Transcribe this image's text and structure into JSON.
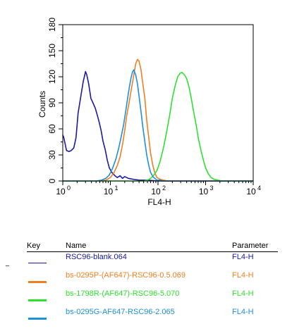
{
  "chart_data": {
    "type": "line",
    "title": "",
    "xlabel": "FL4-H",
    "ylabel": "Counts",
    "xscale": "log",
    "xlim": [
      1,
      10000
    ],
    "ylim": [
      0,
      180
    ],
    "x_ticks": [
      {
        "value": 1,
        "base": "10",
        "exp": "0"
      },
      {
        "value": 10,
        "base": "10",
        "exp": "1"
      },
      {
        "value": 100,
        "base": "10",
        "exp": "2"
      },
      {
        "value": 1000,
        "base": "10",
        "exp": "3"
      },
      {
        "value": 10000,
        "base": "10",
        "exp": "4"
      }
    ],
    "y_ticks": [
      "0",
      "30",
      "60",
      "90",
      "120",
      "150",
      "180"
    ],
    "grid": false,
    "legend_placement": "below",
    "series": [
      {
        "name": "RSC96-blank.064",
        "color": "#1a1aa6",
        "x": [
          1.0,
          1.05,
          1.12,
          1.2,
          1.35,
          1.5,
          1.7,
          1.9,
          2.1,
          2.4,
          2.7,
          2.9,
          3.0,
          3.2,
          3.5,
          3.9,
          4.3,
          4.8,
          5.3,
          5.8,
          6.4,
          7.0,
          7.8,
          8.6,
          9.5,
          11,
          12.5,
          14,
          16,
          18,
          20,
          24,
          30,
          40,
          60,
          100,
          300,
          10000
        ],
        "y": [
          53,
          50,
          43,
          35,
          34,
          35,
          38,
          50,
          78,
          98,
          115,
          122,
          126,
          122,
          112,
          95,
          90,
          84,
          76,
          68,
          58,
          46,
          36,
          24,
          15,
          9,
          6,
          4,
          6,
          3,
          5,
          3,
          2,
          1,
          1,
          0,
          0,
          0
        ]
      },
      {
        "name": "bs-0295P-(AF647)-RSC96-0.5.069",
        "color": "#f07f1f",
        "x": [
          1,
          6,
          8,
          10,
          12,
          14,
          16,
          18,
          20,
          22,
          25,
          28,
          31,
          34,
          37,
          40,
          44,
          48,
          53,
          58,
          64,
          70,
          78,
          86,
          95,
          110,
          130,
          160,
          220,
          10000
        ],
        "y": [
          0,
          0,
          1,
          4,
          10,
          18,
          28,
          42,
          58,
          75,
          92,
          108,
          122,
          135,
          140,
          138,
          128,
          112,
          95,
          70,
          50,
          32,
          18,
          9,
          4,
          2,
          1,
          0,
          0,
          0
        ]
      },
      {
        "name": "bs-1798R-(AF647)-RSC96-5.070",
        "color": "#2fe02f",
        "x": [
          1,
          50,
          60,
          70,
          80,
          95,
          110,
          130,
          150,
          175,
          200,
          230,
          260,
          290,
          320,
          360,
          400,
          450,
          500,
          560,
          630,
          700,
          800,
          900,
          1000,
          1150,
          1300,
          1500,
          1800,
          2200,
          10000
        ],
        "y": [
          0,
          0,
          1,
          3,
          6,
          12,
          22,
          38,
          55,
          75,
          95,
          110,
          120,
          124,
          125,
          122,
          118,
          108,
          95,
          80,
          65,
          50,
          35,
          24,
          15,
          8,
          4,
          2,
          1,
          0,
          0
        ]
      },
      {
        "name": "bs-0295G-AF647-RSC96-2.065",
        "color": "#1e90dc",
        "x": [
          1,
          5,
          6.5,
          8,
          9.5,
          11,
          13,
          15,
          17,
          19,
          21,
          23,
          25,
          27,
          29,
          31,
          34,
          37,
          40,
          44,
          48,
          53,
          58,
          64,
          70,
          78,
          86,
          95,
          110,
          130,
          160,
          10000
        ],
        "y": [
          0,
          0,
          1,
          3,
          7,
          14,
          25,
          38,
          52,
          65,
          80,
          95,
          108,
          118,
          125,
          128,
          122,
          112,
          98,
          80,
          62,
          45,
          30,
          18,
          10,
          5,
          3,
          1,
          1,
          0,
          0,
          0
        ]
      }
    ]
  },
  "key": {
    "header_key": "Key",
    "header_name": "Name",
    "header_param": "Parameter",
    "rows": [
      {
        "name": "RSC96-blank.064",
        "param": "FL4-H",
        "color": "#1a1aa6"
      },
      {
        "name": "bs-0295P-(AF647)-RSC96-0.5.069",
        "param": "FL4-H",
        "color": "#f07f1f"
      },
      {
        "name": "bs-1798R-(AF647)-RSC96-5.070",
        "param": "FL4-H",
        "color": "#2fe02f"
      },
      {
        "name": "bs-0295G-AF647-RSC96-2.065",
        "param": "FL4-H",
        "color": "#1e90dc"
      }
    ]
  }
}
